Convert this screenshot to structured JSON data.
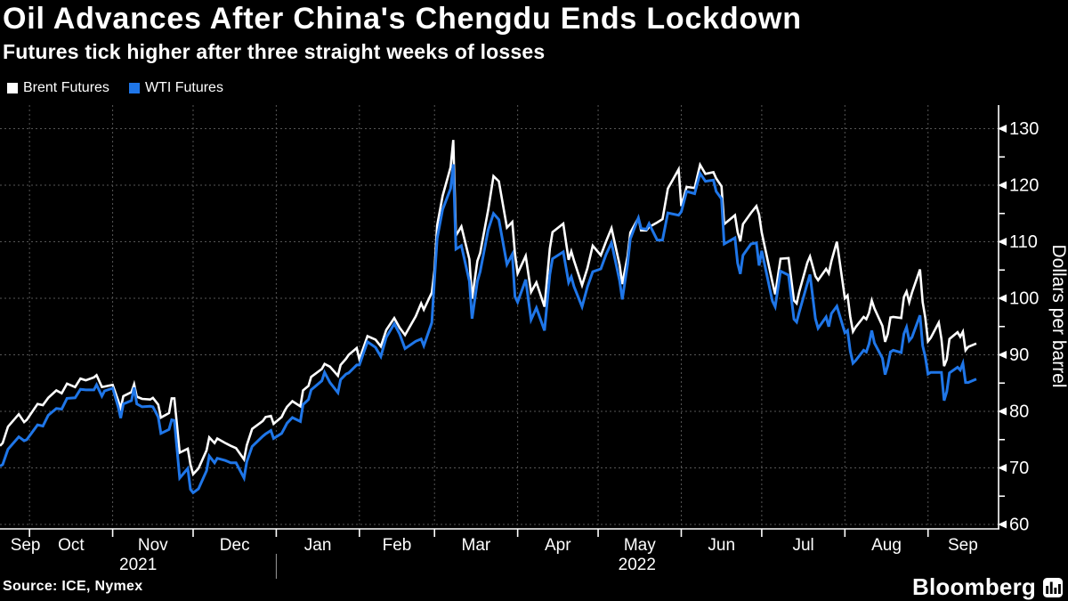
{
  "header": {
    "title": "Oil Advances After China's Chengdu Ends Lockdown",
    "subtitle": "Futures tick higher after three straight weeks of losses"
  },
  "legend": [
    {
      "label": "Brent Futures",
      "color": "#ffffff"
    },
    {
      "label": "WTI Futures",
      "color": "#1f76e8"
    }
  ],
  "footer": {
    "source": "Source: ICE, Nymex",
    "brand": "Bloomberg"
  },
  "colors": {
    "background": "#000000",
    "axis": "#ffffff",
    "gridline": "#565656",
    "year_divider": "#9a9a9a",
    "brent": "#ffffff",
    "wti": "#1f76e8"
  },
  "chart_data": {
    "type": "line",
    "ylabel": "Dollars per barrel",
    "grid": true,
    "legend_position": "top-left",
    "y_axis": {
      "min": 60,
      "max": 130,
      "major_step": 10,
      "minor_step": 5,
      "tick_labels": [
        "130",
        "120",
        "110",
        "100",
        "90",
        "80",
        "70",
        "60"
      ]
    },
    "x_axis": {
      "start_date": "2021-09-20",
      "end_t": 372.3,
      "month_ticks_t": [
        11,
        42,
        72,
        103,
        134,
        162,
        193,
        223,
        254,
        284,
        315,
        346
      ],
      "month_labels": [
        {
          "label": "Sep",
          "t": 9.5
        },
        {
          "label": "Oct",
          "t": 26.5
        },
        {
          "label": "Nov",
          "t": 57
        },
        {
          "label": "Dec",
          "t": 87.5
        },
        {
          "label": "Jan",
          "t": 118.5
        },
        {
          "label": "Feb",
          "t": 148
        },
        {
          "label": "Mar",
          "t": 177.5
        },
        {
          "label": "Apr",
          "t": 208
        },
        {
          "label": "May",
          "t": 238.5
        },
        {
          "label": "Jun",
          "t": 269
        },
        {
          "label": "Jul",
          "t": 299.5
        },
        {
          "label": "Aug",
          "t": 330.5
        },
        {
          "label": "Sep",
          "t": 359
        }
      ],
      "year_labels": [
        {
          "label": "2021",
          "t": 51.5
        },
        {
          "label": "2022",
          "t": 237.5
        }
      ],
      "year_divider_t": 103
    },
    "x": [
      0,
      1,
      3,
      7,
      9,
      10,
      14,
      16,
      18,
      21,
      23,
      25,
      28,
      30,
      32,
      35,
      36,
      38,
      39,
      42,
      44,
      45,
      46,
      49,
      50,
      51,
      53,
      56,
      57,
      59,
      60,
      63,
      64,
      65,
      67,
      70,
      71,
      72,
      74,
      77,
      78,
      80,
      81,
      84,
      86,
      88,
      91,
      92,
      94,
      98,
      99,
      101,
      102,
      105,
      106,
      107,
      109,
      112,
      113,
      115,
      116,
      120,
      121,
      123,
      126,
      127,
      129,
      130,
      133,
      134,
      137,
      140,
      142,
      144,
      147,
      149,
      151,
      155,
      157,
      158,
      161,
      162,
      163,
      165,
      168,
      169,
      170,
      172,
      175,
      176,
      178,
      179,
      182,
      184,
      186,
      189,
      191,
      192,
      193,
      196,
      198,
      200,
      203,
      205,
      206,
      210,
      212,
      213,
      214,
      217,
      219,
      221,
      224,
      226,
      228,
      231,
      232,
      234,
      235,
      238,
      239,
      241,
      242,
      245,
      247,
      249,
      253,
      254,
      256,
      259,
      261,
      263,
      266,
      267,
      269,
      270,
      274,
      275,
      276,
      277,
      280,
      282,
      283,
      284,
      288,
      289,
      291,
      294,
      296,
      297,
      298,
      301,
      302,
      304,
      305,
      308,
      309,
      310,
      312,
      315,
      316,
      317,
      318,
      319,
      322,
      323,
      324,
      325,
      326,
      329,
      330,
      331,
      332,
      333,
      336,
      337,
      338,
      339,
      340,
      343,
      344,
      345,
      346,
      347,
      350,
      351,
      352,
      353,
      354,
      357,
      358,
      359,
      360,
      361,
      364
    ],
    "series": [
      {
        "name": "Brent Futures",
        "color": "#ffffff",
        "width": 2.6,
        "values": [
          73.9,
          74.4,
          77.3,
          79.5,
          78.1,
          78.5,
          81.3,
          81.1,
          82.4,
          83.7,
          83.2,
          84.9,
          84.3,
          85.8,
          85.5,
          86.0,
          86.4,
          84.3,
          84.4,
          84.7,
          82.0,
          80.5,
          82.7,
          83.4,
          84.8,
          82.6,
          82.2,
          82.1,
          82.4,
          81.2,
          78.9,
          79.7,
          82.3,
          82.3,
          72.7,
          73.4,
          70.6,
          68.9,
          69.9,
          73.1,
          75.4,
          74.4,
          75.2,
          74.4,
          73.9,
          73.5,
          71.5,
          74.0,
          76.9,
          78.3,
          79.0,
          79.2,
          77.8,
          79.0,
          80.0,
          80.8,
          81.8,
          80.9,
          83.7,
          84.5,
          86.1,
          87.5,
          88.4,
          87.9,
          86.3,
          88.2,
          89.3,
          90.0,
          91.2,
          89.2,
          93.3,
          92.7,
          91.5,
          94.4,
          96.5,
          94.8,
          93.5,
          96.8,
          99.1,
          98.0,
          101.0,
          105.0,
          112.9,
          118.1,
          123.2,
          128.0,
          111.1,
          112.7,
          106.9,
          99.9,
          106.6,
          108.0,
          115.6,
          121.6,
          120.7,
          112.5,
          113.5,
          107.9,
          104.4,
          107.5,
          101.1,
          102.8,
          98.5,
          108.8,
          111.7,
          113.2,
          106.8,
          108.3,
          106.7,
          102.3,
          105.3,
          109.3,
          107.6,
          110.1,
          112.4,
          105.9,
          102.5,
          107.5,
          111.6,
          114.2,
          112.0,
          112.0,
          112.6,
          113.4,
          114.0,
          119.4,
          122.8,
          116.3,
          119.7,
          119.5,
          123.6,
          122.0,
          122.3,
          121.2,
          119.8,
          113.1,
          114.7,
          111.7,
          110.1,
          113.1,
          115.1,
          116.3,
          114.8,
          111.6,
          102.8,
          100.7,
          107.0,
          107.1,
          99.6,
          99.1,
          101.2,
          106.3,
          107.4,
          103.9,
          103.2,
          105.2,
          104.4,
          106.6,
          110.0,
          100.0,
          100.5,
          96.8,
          94.1,
          94.9,
          96.7,
          96.3,
          97.4,
          99.6,
          98.2,
          95.1,
          92.3,
          93.7,
          96.6,
          96.7,
          96.5,
          100.2,
          101.2,
          99.3,
          101.0,
          105.1,
          99.3,
          96.5,
          92.4,
          93.0,
          95.7,
          92.8,
          88.0,
          89.2,
          92.8,
          94.0,
          93.2,
          94.1,
          90.8,
          91.4,
          92.0
        ]
      },
      {
        "name": "WTI Futures",
        "color": "#1f76e8",
        "width": 3,
        "values": [
          70.3,
          70.6,
          73.3,
          75.5,
          74.8,
          75.0,
          77.6,
          77.4,
          79.3,
          80.5,
          80.4,
          82.3,
          82.4,
          83.9,
          83.8,
          83.8,
          84.7,
          82.7,
          83.6,
          84.1,
          80.9,
          78.8,
          81.3,
          81.9,
          84.2,
          81.3,
          80.8,
          80.9,
          80.8,
          79.0,
          76.1,
          76.8,
          78.5,
          78.4,
          68.2,
          69.9,
          66.2,
          65.6,
          66.3,
          69.5,
          72.1,
          70.9,
          71.7,
          71.3,
          70.9,
          70.9,
          68.2,
          71.1,
          73.8,
          75.6,
          76.0,
          76.6,
          75.2,
          76.1,
          77.0,
          77.9,
          78.9,
          78.2,
          81.2,
          82.1,
          83.8,
          85.4,
          86.9,
          85.1,
          83.3,
          85.6,
          86.6,
          86.8,
          88.2,
          88.2,
          92.3,
          91.3,
          89.7,
          93.1,
          95.5,
          93.7,
          91.1,
          92.4,
          92.8,
          91.6,
          95.7,
          103.4,
          110.6,
          115.7,
          119.4,
          123.7,
          108.7,
          109.3,
          103.0,
          96.4,
          103.0,
          104.7,
          112.1,
          115.0,
          113.9,
          106.0,
          107.8,
          100.3,
          99.3,
          103.3,
          96.2,
          98.3,
          94.3,
          104.2,
          107.0,
          108.2,
          102.8,
          103.8,
          102.1,
          98.5,
          102.0,
          104.7,
          105.2,
          107.8,
          109.8,
          103.1,
          99.8,
          106.1,
          110.5,
          114.2,
          112.4,
          112.2,
          113.2,
          110.3,
          110.3,
          115.1,
          114.7,
          115.3,
          118.9,
          118.5,
          122.1,
          120.7,
          120.9,
          118.9,
          117.6,
          109.6,
          110.7,
          106.2,
          104.3,
          107.6,
          109.6,
          109.8,
          105.8,
          108.4,
          99.5,
          98.5,
          104.8,
          104.1,
          96.3,
          95.8,
          97.6,
          102.6,
          104.2,
          96.4,
          94.7,
          96.7,
          95.0,
          97.3,
          98.6,
          93.9,
          94.3,
          90.7,
          88.5,
          89.0,
          90.8,
          90.5,
          91.9,
          94.3,
          92.1,
          89.4,
          86.5,
          88.1,
          90.5,
          90.8,
          90.4,
          93.7,
          94.9,
          92.5,
          93.1,
          97.0,
          91.6,
          89.6,
          86.6,
          86.9,
          86.9,
          86.9,
          81.9,
          83.5,
          86.8,
          87.8,
          87.3,
          88.5,
          85.1,
          85.1,
          85.7
        ]
      }
    ]
  }
}
